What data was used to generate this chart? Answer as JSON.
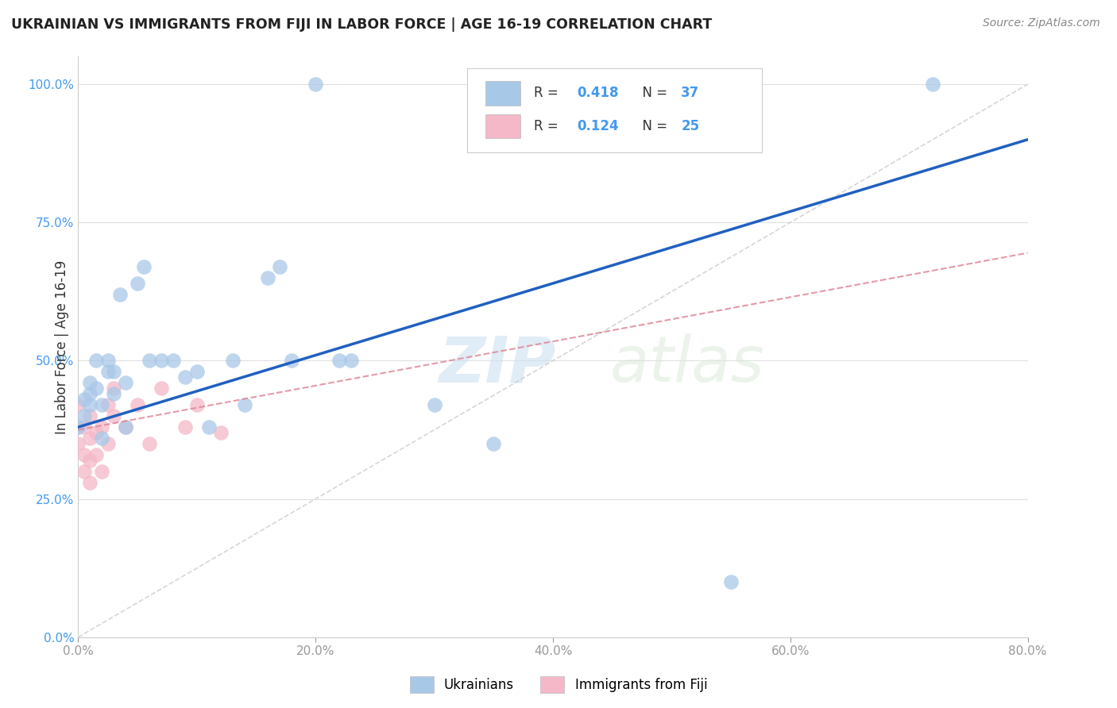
{
  "title": "UKRAINIAN VS IMMIGRANTS FROM FIJI IN LABOR FORCE | AGE 16-19 CORRELATION CHART",
  "source": "Source: ZipAtlas.com",
  "ylabel": "In Labor Force | Age 16-19",
  "xlim": [
    0.0,
    0.8
  ],
  "ylim": [
    0.0,
    1.05
  ],
  "legend_labels": [
    "Ukrainians",
    "Immigrants from Fiji"
  ],
  "R_ukr": 0.418,
  "N_ukr": 37,
  "R_fiji": 0.124,
  "N_fiji": 25,
  "blue_color": "#a8c8e8",
  "pink_color": "#f4b8c8",
  "blue_line_color": "#2060c0",
  "pink_line_color": "#e08898",
  "watermark_zip": "ZIP",
  "watermark_atlas": "atlas",
  "ukrainians_x": [
    0.0,
    0.005,
    0.005,
    0.01,
    0.01,
    0.01,
    0.015,
    0.015,
    0.02,
    0.02,
    0.025,
    0.025,
    0.03,
    0.03,
    0.035,
    0.04,
    0.04,
    0.05,
    0.055,
    0.06,
    0.07,
    0.08,
    0.09,
    0.1,
    0.11,
    0.13,
    0.14,
    0.16,
    0.17,
    0.18,
    0.2,
    0.22,
    0.23,
    0.3,
    0.35,
    0.55,
    0.72
  ],
  "ukrainians_y": [
    0.38,
    0.4,
    0.43,
    0.42,
    0.44,
    0.46,
    0.45,
    0.5,
    0.36,
    0.42,
    0.48,
    0.5,
    0.44,
    0.48,
    0.62,
    0.38,
    0.46,
    0.64,
    0.67,
    0.5,
    0.5,
    0.5,
    0.47,
    0.48,
    0.38,
    0.5,
    0.42,
    0.65,
    0.67,
    0.5,
    1.0,
    0.5,
    0.5,
    0.42,
    0.35,
    0.1,
    1.0
  ],
  "fiji_x": [
    0.0,
    0.0,
    0.0,
    0.005,
    0.005,
    0.005,
    0.01,
    0.01,
    0.01,
    0.01,
    0.015,
    0.015,
    0.02,
    0.02,
    0.025,
    0.025,
    0.03,
    0.03,
    0.04,
    0.05,
    0.06,
    0.07,
    0.09,
    0.1,
    0.12
  ],
  "fiji_y": [
    0.35,
    0.38,
    0.42,
    0.3,
    0.33,
    0.38,
    0.28,
    0.32,
    0.36,
    0.4,
    0.33,
    0.37,
    0.3,
    0.38,
    0.35,
    0.42,
    0.4,
    0.45,
    0.38,
    0.42,
    0.35,
    0.45,
    0.38,
    0.42,
    0.37
  ],
  "background_color": "#ffffff",
  "grid_color": "#e0e0e0"
}
